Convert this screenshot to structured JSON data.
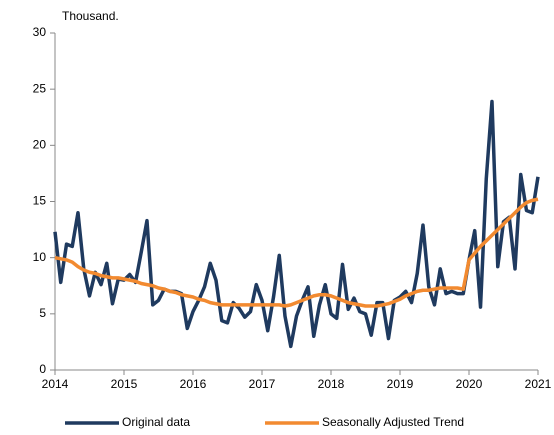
{
  "chart_data": {
    "type": "line",
    "y_label": "Thousand.",
    "x": [
      2014,
      2014.083,
      2014.167,
      2014.25,
      2014.333,
      2014.417,
      2014.5,
      2014.583,
      2014.667,
      2014.75,
      2014.833,
      2014.917,
      2015,
      2015.083,
      2015.167,
      2015.25,
      2015.333,
      2015.417,
      2015.5,
      2015.583,
      2015.667,
      2015.75,
      2015.833,
      2015.917,
      2016,
      2016.083,
      2016.167,
      2016.25,
      2016.333,
      2016.417,
      2016.5,
      2016.583,
      2016.667,
      2016.75,
      2016.833,
      2016.917,
      2017,
      2017.083,
      2017.167,
      2017.25,
      2017.333,
      2017.417,
      2017.5,
      2017.583,
      2017.667,
      2017.75,
      2017.833,
      2017.917,
      2018,
      2018.083,
      2018.167,
      2018.25,
      2018.333,
      2018.417,
      2018.5,
      2018.583,
      2018.667,
      2018.75,
      2018.833,
      2018.917,
      2019,
      2019.083,
      2019.167,
      2019.25,
      2019.333,
      2019.417,
      2019.5,
      2019.583,
      2019.667,
      2019.75,
      2019.833,
      2019.917,
      2020,
      2020.083,
      2020.167,
      2020.25,
      2020.333,
      2020.417,
      2020.5,
      2020.583,
      2020.667,
      2020.75,
      2020.833,
      2020.917,
      2021
    ],
    "series": [
      {
        "name": "Original data",
        "color": "#1f3a5f",
        "values": [
          12.3,
          7.8,
          11.2,
          11,
          14,
          9,
          6.6,
          8.7,
          7.6,
          9.5,
          5.9,
          8.1,
          8,
          8.5,
          7.8,
          10.5,
          13.3,
          5.8,
          6.2,
          7.2,
          7,
          7,
          6.8,
          3.7,
          5.2,
          6.2,
          7.4,
          9.5,
          8,
          4.4,
          4.2,
          6,
          5.5,
          4.7,
          5.2,
          7.6,
          6.2,
          3.5,
          6.5,
          10.2,
          4.8,
          2.1,
          4.8,
          6.2,
          7.4,
          3,
          5.8,
          7.6,
          5,
          4.6,
          9.4,
          5.4,
          6.4,
          5.2,
          5,
          3.1,
          6,
          6,
          2.8,
          6.2,
          6.5,
          7,
          6,
          8.6,
          12.9,
          7.4,
          5.8,
          9,
          6.8,
          7,
          6.8,
          6.8,
          9.8,
          12.4,
          5.6,
          17,
          23.9,
          9.2,
          13.2,
          13.6,
          9,
          17.4,
          14.2,
          14,
          17.2
        ]
      },
      {
        "name": "Seasonally Adjusted Trend",
        "color": "#f28a30",
        "values": [
          10,
          9.9,
          9.8,
          9.6,
          9.2,
          8.9,
          8.7,
          8.6,
          8.4,
          8.3,
          8.2,
          8.2,
          8.1,
          8,
          7.9,
          7.7,
          7.6,
          7.5,
          7.3,
          7.2,
          7,
          6.9,
          6.7,
          6.6,
          6.5,
          6.3,
          6.2,
          6,
          5.9,
          5.8,
          5.8,
          5.8,
          5.8,
          5.8,
          5.8,
          5.8,
          5.8,
          5.8,
          5.8,
          5.8,
          5.7,
          5.8,
          6,
          6.2,
          6.4,
          6.6,
          6.7,
          6.7,
          6.6,
          6.4,
          6.2,
          6,
          5.9,
          5.8,
          5.7,
          5.7,
          5.7,
          5.8,
          5.9,
          6.1,
          6.3,
          6.6,
          6.8,
          7,
          7.1,
          7.1,
          7.2,
          7.3,
          7.3,
          7.3,
          7.3,
          7.2,
          9.8,
          10.4,
          11,
          11.5,
          12,
          12.5,
          13,
          13.5,
          14,
          14.5,
          14.9,
          15.1,
          15.2
        ]
      }
    ],
    "xlim": [
      2014,
      2021
    ],
    "xticks": [
      2014,
      2015,
      2016,
      2017,
      2018,
      2019,
      2020,
      2021
    ],
    "ylim": [
      0,
      30
    ],
    "yticks": [
      0,
      5,
      10,
      15,
      20,
      25,
      30
    ],
    "grid": false,
    "legend": "bottom"
  }
}
